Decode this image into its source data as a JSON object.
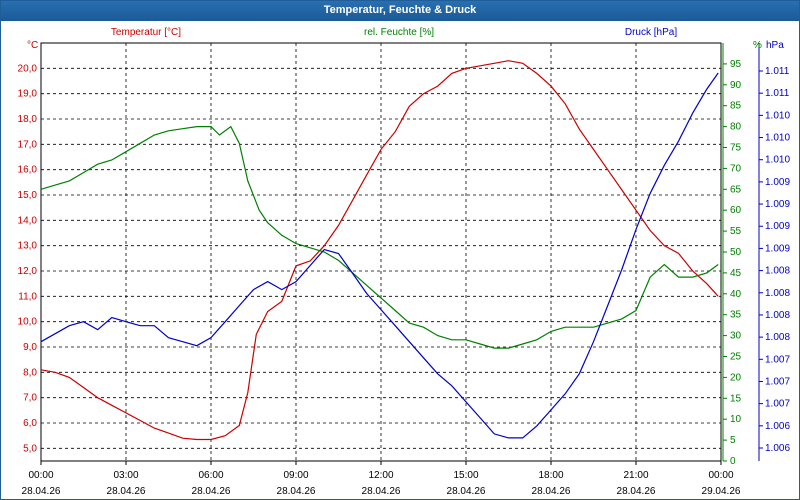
{
  "window": {
    "title": "Temperatur, Feuchte & Druck"
  },
  "colors": {
    "temp": "#cc0000",
    "hum": "#008000",
    "pres": "#0000cc",
    "grid": "#000000"
  },
  "chart_data": {
    "type": "line",
    "title": "Temperatur, Feuchte & Druck",
    "x_ticks": [
      {
        "time": "00:00",
        "date": "28.04.26"
      },
      {
        "time": "03:00",
        "date": "28.04.26"
      },
      {
        "time": "06:00",
        "date": "28.04.26"
      },
      {
        "time": "09:00",
        "date": "28.04.26"
      },
      {
        "time": "12:00",
        "date": "28.04.26"
      },
      {
        "time": "15:00",
        "date": "28.04.26"
      },
      {
        "time": "18:00",
        "date": "28.04.26"
      },
      {
        "time": "21:00",
        "date": "28.04.26"
      },
      {
        "time": "00:00",
        "date": "29.04.26"
      }
    ],
    "x_range_hours": [
      0,
      24
    ],
    "axes": {
      "temp": {
        "label": "Temperatur [°C]",
        "unit": "°C",
        "range": [
          4.5,
          21.0
        ],
        "ticks": [
          "5,0",
          "6,0",
          "7,0",
          "8,0",
          "9,0",
          "10,0",
          "11,0",
          "12,0",
          "13,0",
          "14,0",
          "15,0",
          "16,0",
          "17,0",
          "18,0",
          "19,0",
          "20,0"
        ],
        "tick_values": [
          5,
          6,
          7,
          8,
          9,
          10,
          11,
          12,
          13,
          14,
          15,
          16,
          17,
          18,
          19,
          20
        ]
      },
      "hum": {
        "label": "rel. Feuchte [%]",
        "unit": "%",
        "range": [
          0,
          100
        ],
        "ticks": [
          "0",
          "5",
          "10",
          "15",
          "20",
          "25",
          "30",
          "35",
          "40",
          "45",
          "50",
          "55",
          "60",
          "65",
          "70",
          "75",
          "80",
          "85",
          "90",
          "95"
        ],
        "tick_values": [
          0,
          5,
          10,
          15,
          20,
          25,
          30,
          35,
          40,
          45,
          50,
          55,
          60,
          65,
          70,
          75,
          80,
          85,
          90,
          95
        ]
      },
      "pres": {
        "label": "Druck [hPa]",
        "unit": "hPa",
        "ticks": [
          "1.006",
          "1.006",
          "1.007",
          "1.007",
          "1.007",
          "1.008",
          "1.008",
          "1.008",
          "1.008",
          "1.009",
          "1.009",
          "1.009",
          "1.009",
          "1.010",
          "1.010",
          "1.010",
          "1.011",
          "1.011"
        ]
      }
    },
    "series": [
      {
        "name": "Temperatur",
        "axis": "temp",
        "color": "#cc0000",
        "x": [
          0,
          0.5,
          1,
          1.5,
          2,
          2.5,
          3,
          3.5,
          4,
          4.5,
          5,
          5.5,
          6,
          6.5,
          7,
          7.3,
          7.6,
          8,
          8.5,
          9,
          9.5,
          10,
          10.5,
          11,
          11.5,
          12,
          12.5,
          13,
          13.5,
          14,
          14.5,
          15,
          15.5,
          16,
          16.5,
          17,
          17.5,
          18,
          18.5,
          19,
          19.5,
          20,
          20.5,
          21,
          21.5,
          22,
          22.5,
          23,
          23.5,
          24
        ],
        "values": [
          8.1,
          8.0,
          7.8,
          7.4,
          7.0,
          6.7,
          6.4,
          6.1,
          5.8,
          5.6,
          5.4,
          5.35,
          5.35,
          5.5,
          5.9,
          7.2,
          9.5,
          10.4,
          10.8,
          12.2,
          12.4,
          13.0,
          13.8,
          14.8,
          15.8,
          16.8,
          17.5,
          18.5,
          19.0,
          19.3,
          19.8,
          20.0,
          20.1,
          20.2,
          20.3,
          20.2,
          19.8,
          19.3,
          18.6,
          17.6,
          16.8,
          16.0,
          15.2,
          14.4,
          13.6,
          13.0,
          12.7,
          12.0,
          11.5,
          11.0
        ],
        "end_hour": 23.9
      },
      {
        "name": "rel. Feuchte",
        "axis": "hum",
        "color": "#008000",
        "x": [
          0,
          0.5,
          1,
          1.5,
          2,
          2.5,
          3,
          3.5,
          4,
          4.5,
          5,
          5.5,
          6,
          6.3,
          6.7,
          7,
          7.3,
          7.7,
          8,
          8.5,
          9,
          9.5,
          10,
          10.5,
          11,
          11.5,
          12,
          12.5,
          13,
          13.5,
          14,
          14.5,
          15,
          15.5,
          16,
          16.5,
          17,
          17.5,
          18,
          18.5,
          19,
          19.5,
          20,
          20.5,
          21,
          21.5,
          22,
          22.5,
          23,
          23.5,
          24
        ],
        "values": [
          65,
          66,
          67,
          69,
          71,
          72,
          74,
          76,
          78,
          79,
          79.5,
          80,
          80,
          78,
          80,
          76,
          67,
          60,
          57,
          54,
          52,
          51,
          50,
          48,
          45,
          42,
          39,
          36,
          33,
          32,
          30,
          29,
          29,
          28,
          27,
          27,
          28,
          29,
          31,
          32,
          32,
          32,
          33,
          34,
          36,
          44,
          47,
          44,
          44,
          45,
          47
        ],
        "end_hour": 23.9
      },
      {
        "name": "Druck",
        "axis": "pres",
        "color": "#0000cc",
        "scale": "relative 0-1 of axis range",
        "x": [
          0,
          0.5,
          1,
          1.5,
          2,
          2.5,
          3,
          3.5,
          4,
          4.5,
          5,
          5.5,
          6,
          6.5,
          7,
          7.5,
          8,
          8.5,
          9,
          9.5,
          10,
          10.5,
          11,
          11.5,
          12,
          12.5,
          13,
          13.5,
          14,
          14.5,
          15,
          15.5,
          16,
          16.5,
          17,
          17.5,
          18,
          18.5,
          19,
          19.5,
          20,
          20.5,
          21,
          21.5,
          22,
          22.5,
          23,
          23.5,
          24
        ],
        "values": [
          0.29,
          0.31,
          0.33,
          0.34,
          0.32,
          0.35,
          0.34,
          0.33,
          0.33,
          0.3,
          0.29,
          0.28,
          0.3,
          0.34,
          0.38,
          0.42,
          0.44,
          0.42,
          0.44,
          0.48,
          0.52,
          0.51,
          0.46,
          0.41,
          0.37,
          0.33,
          0.29,
          0.25,
          0.21,
          0.18,
          0.14,
          0.1,
          0.06,
          0.05,
          0.05,
          0.08,
          0.12,
          0.16,
          0.21,
          0.29,
          0.38,
          0.47,
          0.57,
          0.66,
          0.73,
          0.79,
          0.86,
          0.92,
          0.96
        ],
        "end_hour": 23.9
      }
    ]
  }
}
